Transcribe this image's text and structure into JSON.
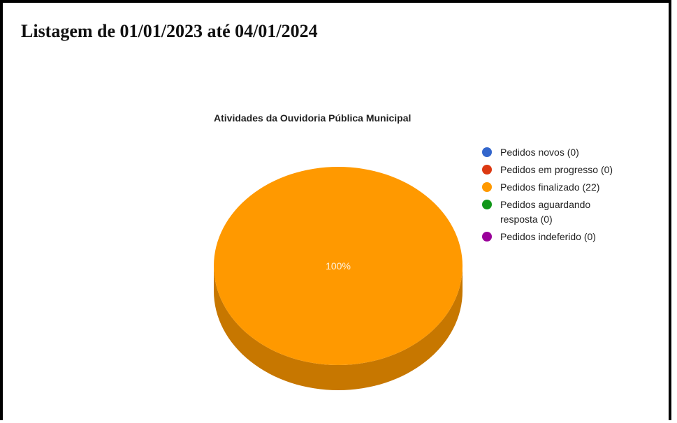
{
  "page": {
    "title": "Listagem de 01/01/2023 até 04/01/2024"
  },
  "chart_data": {
    "type": "pie",
    "title": "Atividades da Ouvidoria Pública Municipal",
    "is_3d": true,
    "legend_position": "right",
    "slices": [
      {
        "label": "Pedidos novos (0)",
        "value": 0,
        "color": "#3366cc"
      },
      {
        "label": "Pedidos em progresso (0)",
        "value": 0,
        "color": "#dc3912"
      },
      {
        "label": "Pedidos finalizado (22)",
        "value": 22,
        "color": "#ff9900"
      },
      {
        "label": "Pedidos aguardando resposta (0)",
        "value": 0,
        "color": "#109618"
      },
      {
        "label": "Pedidos indeferido (0)",
        "value": 0,
        "color": "#990099"
      }
    ],
    "data_labels": [
      "100%"
    ]
  }
}
